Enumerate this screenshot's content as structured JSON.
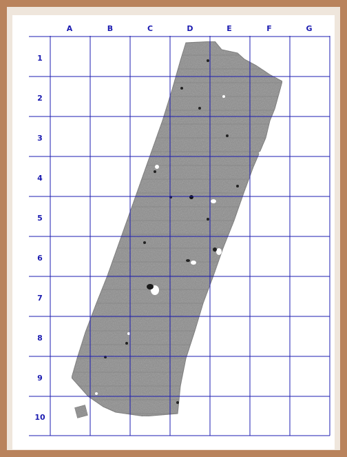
{
  "grid": {
    "columns": [
      "A",
      "B",
      "C",
      "D",
      "E",
      "F",
      "G"
    ],
    "rows": [
      "1",
      "2",
      "3",
      "4",
      "5",
      "6",
      "7",
      "8",
      "9",
      "10"
    ],
    "line_color": "#1b1bb0",
    "label_color": "#1b1bb0"
  },
  "colors": {
    "frame": "#b9835c",
    "background": "#efe6dc",
    "panel": "#ffffff",
    "survey_fill": "#8a8a8a"
  }
}
